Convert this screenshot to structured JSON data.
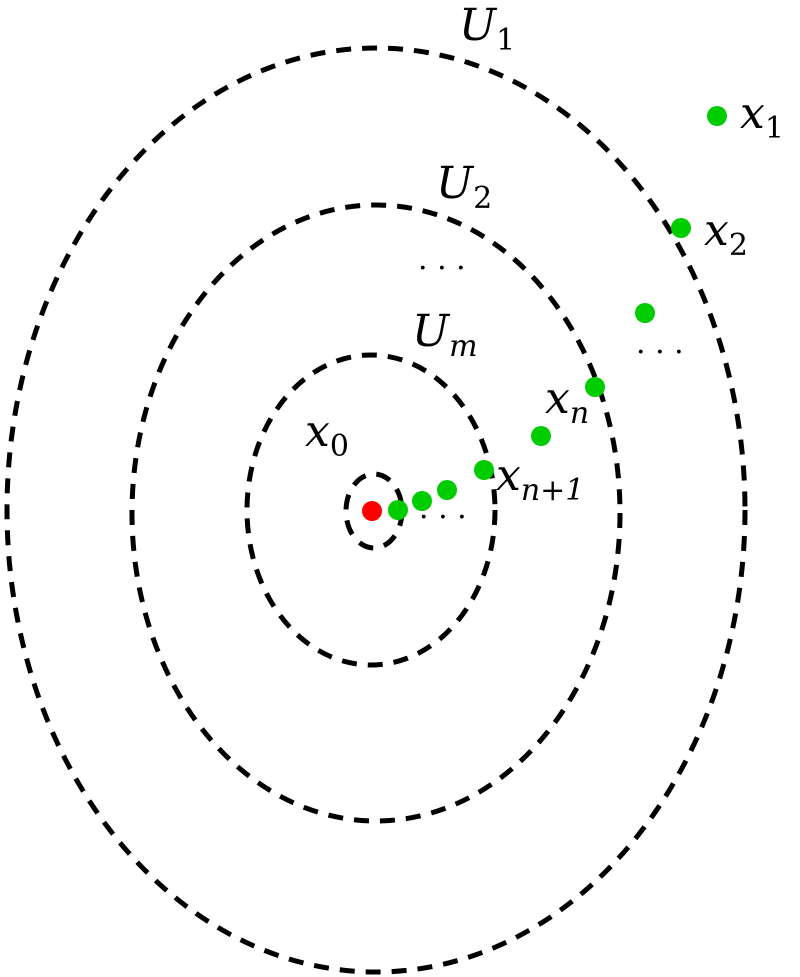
{
  "colors": {
    "point": "#00cc00",
    "center": "#ff0000",
    "stroke": "#000000"
  },
  "labels": {
    "U1": {
      "base": "U",
      "sub": "1"
    },
    "U2": {
      "base": "U",
      "sub": "2"
    },
    "Um": {
      "base": "U",
      "sub": "m"
    },
    "x0": {
      "base": "x",
      "sub": "0"
    },
    "x1": {
      "base": "x",
      "sub": "1"
    },
    "x2": {
      "base": "x",
      "sub": "2"
    },
    "xn": {
      "base": "x",
      "sub": "n"
    },
    "xn1": {
      "base": "x",
      "sub": "n+1"
    }
  },
  "ellipsis": "· · ·",
  "sequence_points": [
    "x1",
    "x2",
    "x",
    "xn",
    "x",
    "xn1",
    "x",
    "x",
    "x"
  ],
  "center_point": "x0"
}
